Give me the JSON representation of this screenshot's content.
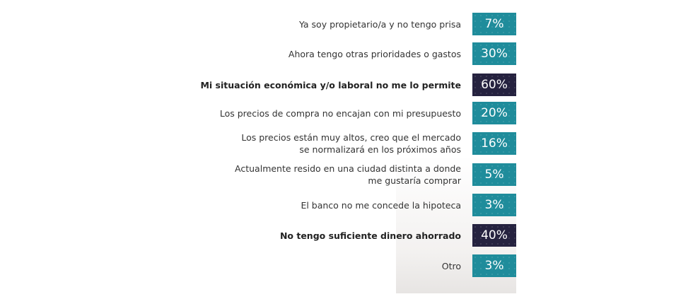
{
  "colors": {
    "normal": "#1f8c9b",
    "highlight": "#25223f"
  },
  "chart_data": {
    "type": "bar",
    "categories": [
      "Ya soy propietario/a y no tengo prisa",
      "Ahora tengo otras prioridades o gastos",
      "Mi situación económica y/o laboral no me lo permite",
      "Los precios de compra no encajan con mi presupuesto",
      "Los precios están muy altos, creo que el mercado\nse normalizará en los próximos años",
      "Actualmente resido en una ciudad distinta a donde\nme gustaría comprar",
      "El banco no me concede la hipoteca",
      "No tengo suficiente dinero ahorrado",
      "Otro"
    ],
    "values": [
      7,
      30,
      60,
      20,
      16,
      5,
      3,
      40,
      3
    ],
    "value_labels": [
      "7%",
      "30%",
      "60%",
      "20%",
      "16%",
      "5%",
      "3%",
      "40%",
      "3%"
    ],
    "highlighted": [
      false,
      false,
      true,
      false,
      false,
      false,
      false,
      true,
      false
    ]
  }
}
